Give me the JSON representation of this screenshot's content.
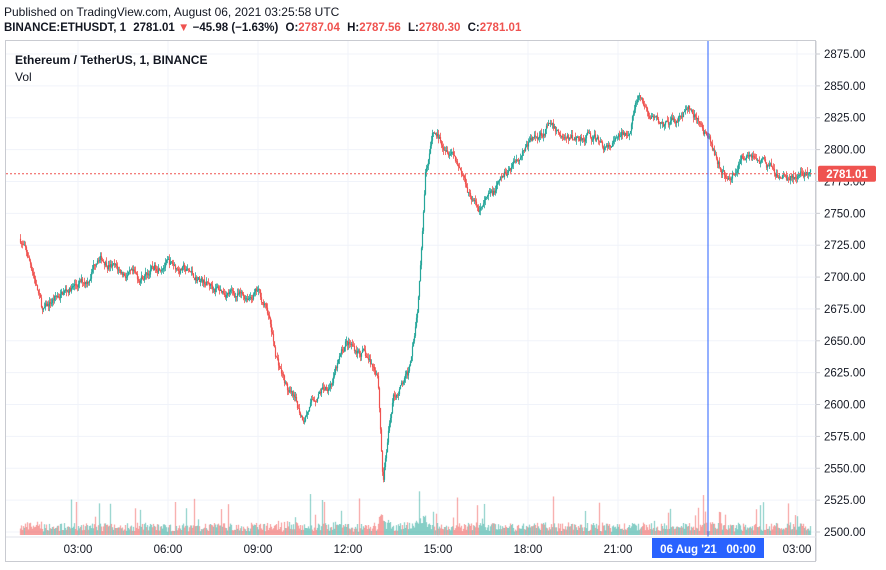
{
  "header": {
    "published": "Published on TradingView.com, August 06, 2021 03:25:58 UTC",
    "symbol": "BINANCE:ETHUSDT, 1",
    "last": "2781.01",
    "arrow": "▼",
    "change": "−45.98 (−1.63%)",
    "o_label": "O:",
    "o_value": "2787.04",
    "h_label": "H:",
    "h_value": "2787.56",
    "l_label": "L:",
    "l_value": "2780.30",
    "c_label": "C:",
    "c_value": "2781.01"
  },
  "legend": {
    "title": "Ethereum / TetherUS, 1, BINANCE",
    "vol": "Vol"
  },
  "crosshair_label": "06 Aug '21   00:00",
  "price_label": "2781.01",
  "colors": {
    "up": "#26a69a",
    "down": "#ef5350",
    "crosshair": "#2962ff",
    "price_line": "#ef5350"
  },
  "chart_data": {
    "type": "candlestick",
    "y_ticks": [
      "2875.00",
      "2850.00",
      "2825.00",
      "2800.00",
      "2775.00",
      "2750.00",
      "2725.00",
      "2700.00",
      "2675.00",
      "2650.00",
      "2625.00",
      "2600.00",
      "2575.00",
      "2550.00",
      "2525.00",
      "2500.00"
    ],
    "x_ticks": [
      "03:00",
      "06:00",
      "09:00",
      "12:00",
      "15:00",
      "18:00",
      "21:00",
      "03:00"
    ],
    "ylim": [
      2500,
      2880
    ],
    "last_price": 2781.01,
    "approx_path": [
      [
        "01:05",
        2730
      ],
      [
        "01:30",
        2705
      ],
      [
        "01:50",
        2672
      ],
      [
        "02:10",
        2682
      ],
      [
        "02:40",
        2690
      ],
      [
        "03:20",
        2698
      ],
      [
        "03:40",
        2718
      ],
      [
        "04:20",
        2705
      ],
      [
        "05:00",
        2698
      ],
      [
        "05:50",
        2712
      ],
      [
        "06:30",
        2706
      ],
      [
        "07:30",
        2692
      ],
      [
        "08:30",
        2684
      ],
      [
        "09:00",
        2688
      ],
      [
        "09:20",
        2672
      ],
      [
        "09:35",
        2640
      ],
      [
        "10:00",
        2610
      ],
      [
        "10:30",
        2590
      ],
      [
        "11:00",
        2608
      ],
      [
        "11:30",
        2620
      ],
      [
        "11:55",
        2648
      ],
      [
        "12:30",
        2640
      ],
      [
        "13:00",
        2625
      ],
      [
        "13:10",
        2540
      ],
      [
        "13:30",
        2605
      ],
      [
        "14:00",
        2622
      ],
      [
        "14:20",
        2680
      ],
      [
        "14:35",
        2785
      ],
      [
        "14:50",
        2812
      ],
      [
        "15:30",
        2800
      ],
      [
        "16:00",
        2770
      ],
      [
        "16:20",
        2752
      ],
      [
        "16:50",
        2765
      ],
      [
        "17:30",
        2790
      ],
      [
        "18:00",
        2805
      ],
      [
        "18:40",
        2818
      ],
      [
        "19:20",
        2808
      ],
      [
        "20:00",
        2812
      ],
      [
        "20:40",
        2800
      ],
      [
        "21:20",
        2815
      ],
      [
        "21:40",
        2840
      ],
      [
        "22:10",
        2822
      ],
      [
        "22:40",
        2818
      ],
      [
        "23:20",
        2832
      ],
      [
        "23:50",
        2816
      ],
      [
        "00:20",
        2790
      ],
      [
        "00:40",
        2775
      ],
      [
        "01:20",
        2800
      ],
      [
        "01:50",
        2790
      ],
      [
        "02:20",
        2778
      ],
      [
        "02:50",
        2778
      ],
      [
        "03:25",
        2781
      ]
    ]
  }
}
